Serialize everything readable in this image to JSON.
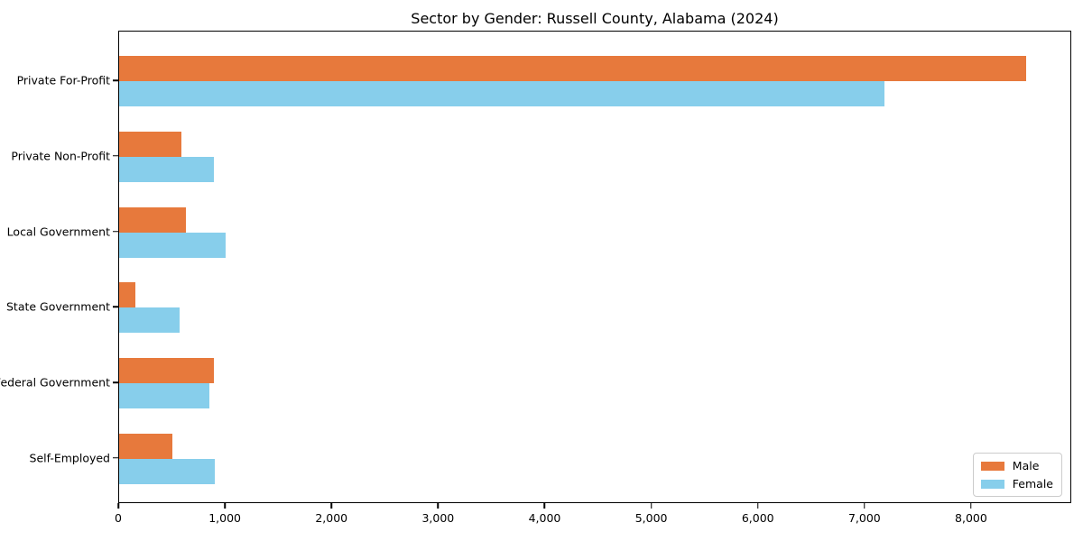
{
  "chart_data": {
    "type": "bar",
    "orientation": "horizontal",
    "title": "Sector by Gender: Russell County, Alabama (2024)",
    "categories": [
      "Private For-Profit",
      "Private Non-Profit",
      "Local Government",
      "State Government",
      "Federal Government",
      "Self-Employed"
    ],
    "series": [
      {
        "name": "Male",
        "color": "#e7793c",
        "values": [
          8510,
          580,
          630,
          150,
          890,
          500
        ]
      },
      {
        "name": "Female",
        "color": "#87ceeb",
        "values": [
          7180,
          890,
          1000,
          570,
          850,
          900
        ]
      }
    ],
    "xlabel": "",
    "ylabel": "",
    "xlim": [
      0,
      8940
    ],
    "xticks": [
      0,
      1000,
      2000,
      3000,
      4000,
      5000,
      6000,
      7000,
      8000
    ],
    "xtick_labels": [
      "0",
      "1,000",
      "2,000",
      "3,000",
      "4,000",
      "5,000",
      "6,000",
      "7,000",
      "8,000"
    ],
    "legend": {
      "position": "lower-right",
      "entries": [
        "Male",
        "Female"
      ]
    },
    "grid": false,
    "background_color": "#ffffff",
    "spine_color": "#000000"
  }
}
